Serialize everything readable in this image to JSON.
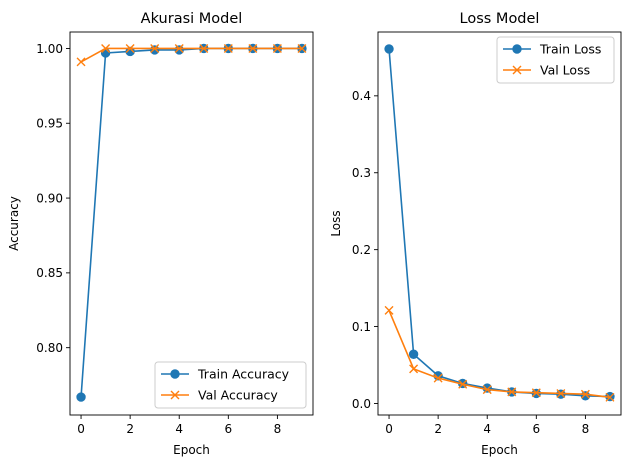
{
  "colors": {
    "train": "#1f77b4",
    "val": "#ff7f0e"
  },
  "chart_data": [
    {
      "type": "line",
      "title": "Akurasi Model",
      "xlabel": "Epoch",
      "ylabel": "Accuracy",
      "xlim": [
        -0.45,
        9.45
      ],
      "ylim": [
        0.755,
        1.011
      ],
      "xticks": [
        0,
        2,
        4,
        6,
        8
      ],
      "xtick_labels": [
        "0",
        "2",
        "4",
        "6",
        "8"
      ],
      "yticks": [
        0.8,
        0.85,
        0.9,
        0.95,
        1.0
      ],
      "ytick_labels": [
        "0.80",
        "0.85",
        "0.90",
        "0.95",
        "1.00"
      ],
      "legend_position": "bottom-right",
      "x": [
        0,
        1,
        2,
        3,
        4,
        5,
        6,
        7,
        8,
        9
      ],
      "series": [
        {
          "name": "Train Accuracy",
          "marker": "circle",
          "color": "#1f77b4",
          "values": [
            0.767,
            0.997,
            0.998,
            0.999,
            0.999,
            1.0,
            1.0,
            1.0,
            1.0,
            1.0
          ]
        },
        {
          "name": "Val Accuracy",
          "marker": "x",
          "color": "#ff7f0e",
          "values": [
            0.991,
            1.0,
            1.0,
            1.0,
            1.0,
            1.0,
            1.0,
            1.0,
            1.0,
            1.0
          ]
        }
      ]
    },
    {
      "type": "line",
      "title": "Loss Model",
      "xlabel": "Epoch",
      "ylabel": "Loss",
      "xlim": [
        -0.45,
        9.45
      ],
      "ylim": [
        -0.015,
        0.483
      ],
      "xticks": [
        0,
        2,
        4,
        6,
        8
      ],
      "xtick_labels": [
        "0",
        "2",
        "4",
        "6",
        "8"
      ],
      "yticks": [
        0.0,
        0.1,
        0.2,
        0.3,
        0.4
      ],
      "ytick_labels": [
        "0.0",
        "0.1",
        "0.2",
        "0.3",
        "0.4"
      ],
      "legend_position": "top-right",
      "x": [
        0,
        1,
        2,
        3,
        4,
        5,
        6,
        7,
        8,
        9
      ],
      "series": [
        {
          "name": "Train Loss",
          "marker": "circle",
          "color": "#1f77b4",
          "values": [
            0.461,
            0.064,
            0.036,
            0.026,
            0.02,
            0.015,
            0.013,
            0.012,
            0.01,
            0.009
          ]
        },
        {
          "name": "Val Loss",
          "marker": "x",
          "color": "#ff7f0e",
          "values": [
            0.121,
            0.045,
            0.033,
            0.025,
            0.018,
            0.015,
            0.014,
            0.013,
            0.012,
            0.008
          ]
        }
      ]
    }
  ]
}
